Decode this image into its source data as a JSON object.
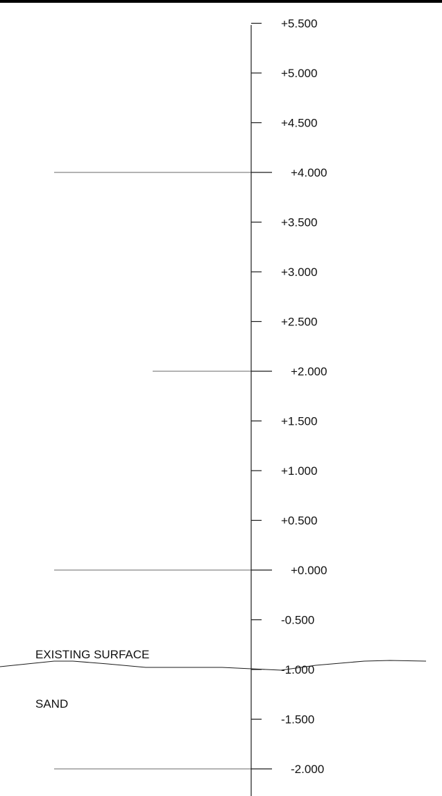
{
  "colors": {
    "frame": "#000000",
    "axis": "#1a1a1a",
    "reference_line": "#9a9a9a",
    "surface_line": "#1a1a1a",
    "text": "#111111"
  },
  "elevation_scale": {
    "ticks": [
      {
        "value": 5.5,
        "label": "+5.500"
      },
      {
        "value": 5.0,
        "label": "+5.000"
      },
      {
        "value": 4.5,
        "label": "+4.500"
      },
      {
        "value": 4.0,
        "label": "+4.000",
        "major": true
      },
      {
        "value": 3.5,
        "label": "+3.500"
      },
      {
        "value": 3.0,
        "label": "+3.000"
      },
      {
        "value": 2.5,
        "label": "+2.500"
      },
      {
        "value": 2.0,
        "label": "+2.000",
        "major": true
      },
      {
        "value": 1.5,
        "label": "+1.500"
      },
      {
        "value": 1.0,
        "label": "+1.000"
      },
      {
        "value": 0.5,
        "label": "+0.500"
      },
      {
        "value": 0.0,
        "label": "+0.000",
        "major": true
      },
      {
        "value": -0.5,
        "label": "-0.500"
      },
      {
        "value": -1.0,
        "label": "-1.000"
      },
      {
        "value": -1.5,
        "label": "-1.500"
      },
      {
        "value": -2.0,
        "label": "-2.000",
        "major": true
      }
    ]
  },
  "reference_lines": [
    {
      "elevation": 4.0
    },
    {
      "elevation": 2.0
    },
    {
      "elevation": 0.0
    },
    {
      "elevation": -2.0
    }
  ],
  "labels": {
    "existing_surface": "EXISTING SURFACE",
    "material": "SAND"
  }
}
